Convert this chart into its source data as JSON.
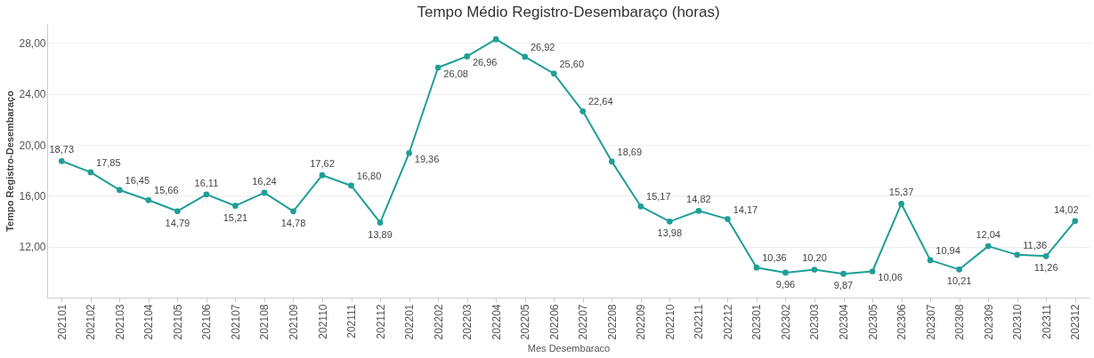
{
  "chart_data": {
    "type": "line",
    "title": "Tempo Médio Registro-Desembaraço (horas)",
    "xlabel": "Mes Desembaraco",
    "ylabel": "Tempo Registro-Desembaraço",
    "categories": [
      "202101",
      "202102",
      "202103",
      "202104",
      "202105",
      "202106",
      "202107",
      "202108",
      "202109",
      "202110",
      "202111",
      "202112",
      "202201",
      "202202",
      "202203",
      "202204",
      "202205",
      "202206",
      "202207",
      "202208",
      "202209",
      "202210",
      "202211",
      "202212",
      "202301",
      "202302",
      "202303",
      "202304",
      "202305",
      "202306",
      "202307",
      "202308",
      "202309",
      "202310",
      "202311",
      "202312"
    ],
    "series": [
      {
        "color": "#1f9e97",
        "values": [
          18.73,
          17.85,
          16.45,
          15.66,
          14.79,
          16.11,
          15.21,
          16.24,
          14.78,
          17.62,
          16.8,
          13.89,
          19.36,
          26.08,
          26.96,
          28.3,
          26.92,
          25.6,
          22.64,
          18.69,
          15.17,
          13.98,
          14.82,
          14.17,
          10.36,
          9.96,
          10.2,
          9.87,
          10.06,
          15.37,
          10.94,
          10.21,
          12.04,
          11.36,
          11.26,
          14.02
        ],
        "value_labels": [
          "18,73",
          "17,85",
          "16,45",
          "15,66",
          "14,79",
          "16,11",
          "15,21",
          "16,24",
          "14,78",
          "17,62",
          "16,80",
          "13,89",
          "19,36",
          "26,08",
          "26,96",
          null,
          "26,92",
          "25,60",
          "22,64",
          "18,69",
          "15,17",
          "13,98",
          "14,82",
          "14,17",
          "10,36",
          "9,96",
          "10,20",
          "9,87",
          "10,06",
          "15,37",
          "10,94",
          "10,21",
          "12,04",
          "11,36",
          "11,26",
          "14,02"
        ]
      }
    ],
    "ylim": [
      8,
      29.5
    ],
    "yticks": [
      {
        "value": 12,
        "label": "12,00"
      },
      {
        "value": 16,
        "label": "16,00"
      },
      {
        "value": 20,
        "label": "20,00"
      },
      {
        "value": 24,
        "label": "24,00"
      },
      {
        "value": 28,
        "label": "28,00"
      }
    ],
    "grid": "y",
    "marker": "circle",
    "line_style": "solid"
  }
}
